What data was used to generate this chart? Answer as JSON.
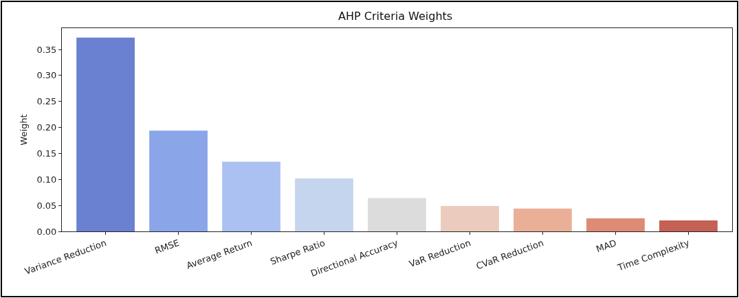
{
  "chart_data": {
    "type": "bar",
    "title": "AHP Criteria Weights",
    "ylabel": "Weight",
    "categories": [
      "Variance Reduction",
      "RMSE",
      "Average Return",
      "Sharpe Ratio",
      "Directional Accuracy",
      "VaR Reduction",
      "CVaR Reduction",
      "MAD",
      "Time Complexity"
    ],
    "values": [
      0.373,
      0.194,
      0.134,
      0.102,
      0.064,
      0.049,
      0.044,
      0.025,
      0.021
    ],
    "colors": [
      "#6a80d0",
      "#8aa6e8",
      "#aac1f2",
      "#c6d5ee",
      "#dcdcdc",
      "#eacbbd",
      "#eab097",
      "#dd8b74",
      "#c46054"
    ],
    "ylim": [
      0,
      0.391
    ],
    "yticks": [
      {
        "value": 0,
        "label": "0.00"
      },
      {
        "value": 0.05,
        "label": "0.05"
      },
      {
        "value": 0.1,
        "label": "0.10"
      },
      {
        "value": 0.15,
        "label": "0.15"
      },
      {
        "value": 0.2,
        "label": "0.20"
      },
      {
        "value": 0.25,
        "label": "0.25"
      },
      {
        "value": 0.3,
        "label": "0.30"
      },
      {
        "value": 0.35,
        "label": "0.35"
      }
    ],
    "grid": false,
    "legend": false
  }
}
